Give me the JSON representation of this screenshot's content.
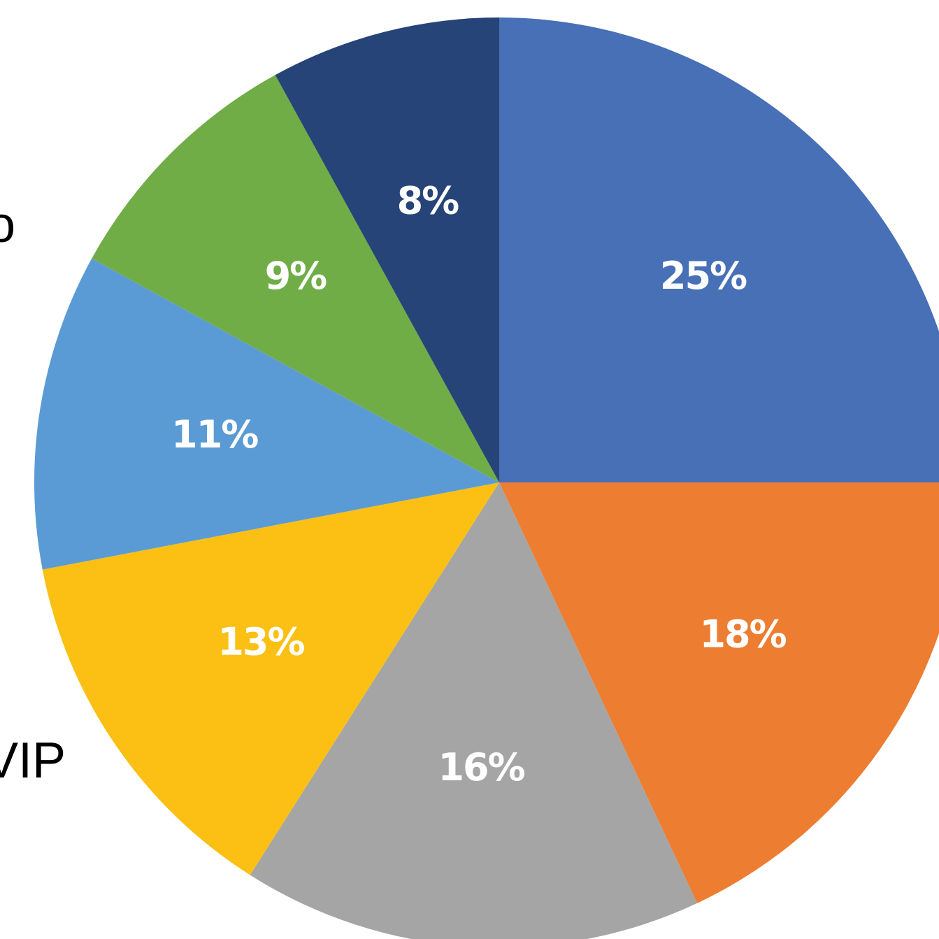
{
  "chart_data": {
    "type": "pie",
    "values": [
      25,
      18,
      16,
      13,
      11,
      9,
      8
    ],
    "labels": [
      "25%",
      "18%",
      "16%",
      "13%",
      "11%",
      "9%",
      "8%"
    ],
    "colors": [
      "#4770B7",
      "#ED7D31",
      "#A5A5A5",
      "#FBC013",
      "#5B9BD5",
      "#70AD47",
      "#264478"
    ],
    "start_angle": "12 o'clock",
    "direction": "clockwise",
    "partial_labels": [
      "o",
      "VIP"
    ]
  }
}
